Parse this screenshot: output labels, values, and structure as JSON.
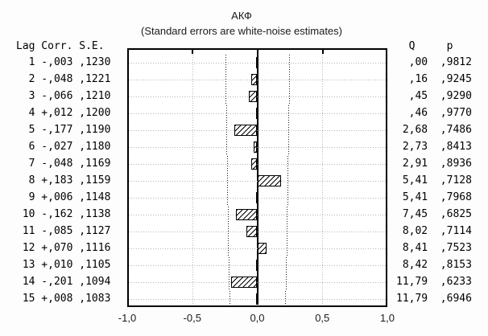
{
  "window": {
    "background": "#fdfdfd",
    "plot_background": "#ffffff",
    "frame_color": "#000000",
    "grid_color": "#b4b4b4",
    "confidence_color": "#1a1a1a"
  },
  "table": {
    "left_header": {
      "lag": "Lag",
      "corr": "Corr.",
      "se": "S.E."
    },
    "right_header": {
      "q": "Q",
      "p": "p"
    }
  },
  "chart_data": {
    "type": "bar",
    "orientation": "horizontal",
    "title": "АКФ",
    "subtitle": "(Standard errors are white-noise estimates)",
    "xlabel": "",
    "xlim": [
      -1,
      1
    ],
    "xticks": [
      "-1,0",
      "-0,5",
      "0,0",
      "0,5",
      "1,0"
    ],
    "xtick_values": [
      -1,
      -0.5,
      0,
      0.5,
      1
    ],
    "gridline_values": [
      -0.5,
      0.5
    ],
    "zero_line": 0,
    "confidence_band": "dotted lines at ±2·S.E. per lag",
    "legend_position": "none",
    "rows": [
      {
        "lag": "1",
        "corr_label": "-,003",
        "corr": -0.003,
        "se_label": ",1230",
        "se": 0.123,
        "q": ",00",
        "p": ",9812"
      },
      {
        "lag": "2",
        "corr_label": "-,048",
        "corr": -0.048,
        "se_label": ",1221",
        "se": 0.1221,
        "q": ",16",
        "p": ",9245"
      },
      {
        "lag": "3",
        "corr_label": "-,066",
        "corr": -0.066,
        "se_label": ",1210",
        "se": 0.121,
        "q": ",45",
        "p": ",9290"
      },
      {
        "lag": "4",
        "corr_label": "+,012",
        "corr": 0.012,
        "se_label": ",1200",
        "se": 0.12,
        "q": ",46",
        "p": ",9770"
      },
      {
        "lag": "5",
        "corr_label": "-,177",
        "corr": -0.177,
        "se_label": ",1190",
        "se": 0.119,
        "q": "2,68",
        "p": ",7486"
      },
      {
        "lag": "6",
        "corr_label": "-,027",
        "corr": -0.027,
        "se_label": ",1180",
        "se": 0.118,
        "q": "2,73",
        "p": ",8413"
      },
      {
        "lag": "7",
        "corr_label": "-,048",
        "corr": -0.048,
        "se_label": ",1169",
        "se": 0.1169,
        "q": "2,91",
        "p": ",8936"
      },
      {
        "lag": "8",
        "corr_label": "+,183",
        "corr": 0.183,
        "se_label": ",1159",
        "se": 0.1159,
        "q": "5,41",
        "p": ",7128"
      },
      {
        "lag": "9",
        "corr_label": "+,006",
        "corr": 0.006,
        "se_label": ",1148",
        "se": 0.1148,
        "q": "5,41",
        "p": ",7968"
      },
      {
        "lag": "10",
        "corr_label": "-,162",
        "corr": -0.162,
        "se_label": ",1138",
        "se": 0.1138,
        "q": "7,45",
        "p": ",6825"
      },
      {
        "lag": "11",
        "corr_label": "-,085",
        "corr": -0.085,
        "se_label": ",1127",
        "se": 0.1127,
        "q": "8,02",
        "p": ",7114"
      },
      {
        "lag": "12",
        "corr_label": "+,070",
        "corr": 0.07,
        "se_label": ",1116",
        "se": 0.1116,
        "q": "8,41",
        "p": ",7523"
      },
      {
        "lag": "13",
        "corr_label": "+,010",
        "corr": 0.01,
        "se_label": ",1105",
        "se": 0.1105,
        "q": "8,42",
        "p": ",8153"
      },
      {
        "lag": "14",
        "corr_label": "-,201",
        "corr": -0.201,
        "se_label": ",1094",
        "se": 0.1094,
        "q": "11,79",
        "p": ",6233"
      },
      {
        "lag": "15",
        "corr_label": "+,008",
        "corr": 0.008,
        "se_label": ",1083",
        "se": 0.1083,
        "q": "11,79",
        "p": ",6946"
      }
    ]
  }
}
